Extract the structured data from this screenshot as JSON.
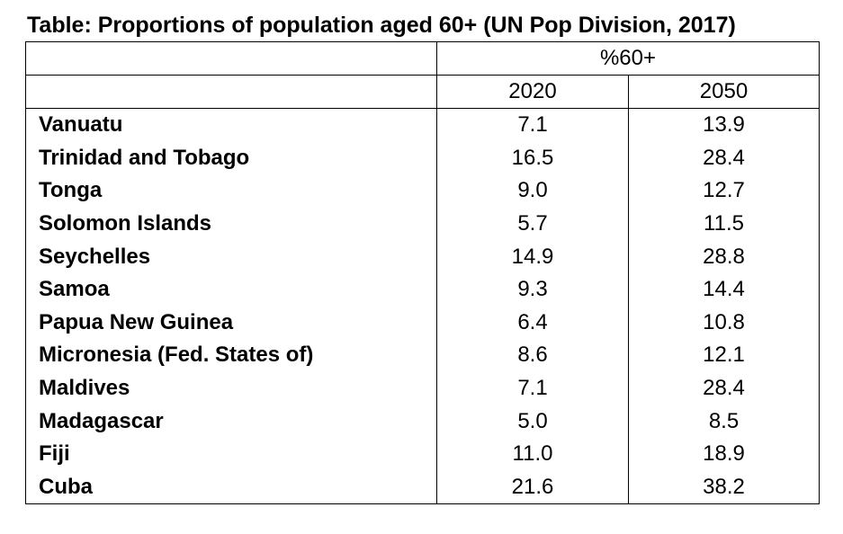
{
  "title": "Table: Proportions of population aged 60+ (UN Pop Division, 2017)",
  "header": {
    "group_label": "%60+",
    "year_2020": "2020",
    "year_2050": "2050"
  },
  "rows": [
    {
      "country": "Vanuatu",
      "v2020": "7.1",
      "v2050": "13.9"
    },
    {
      "country": "Trinidad and Tobago",
      "v2020": "16.5",
      "v2050": "28.4"
    },
    {
      "country": "Tonga",
      "v2020": "9.0",
      "v2050": "12.7"
    },
    {
      "country": "Solomon Islands",
      "v2020": "5.7",
      "v2050": "11.5"
    },
    {
      "country": "Seychelles",
      "v2020": "14.9",
      "v2050": "28.8"
    },
    {
      "country": "Samoa",
      "v2020": "9.3",
      "v2050": "14.4"
    },
    {
      "country": "Papua New Guinea",
      "v2020": "6.4",
      "v2050": "10.8"
    },
    {
      "country": "Micronesia (Fed. States of)",
      "v2020": "8.6",
      "v2050": "12.1"
    },
    {
      "country": "Maldives",
      "v2020": "7.1",
      "v2050": "28.4"
    },
    {
      "country": "Madagascar",
      "v2020": "5.0",
      "v2050": "8.5"
    },
    {
      "country": "Fiji",
      "v2020": "11.0",
      "v2050": "18.9"
    },
    {
      "country": "Cuba",
      "v2020": "21.6",
      "v2050": "38.2"
    }
  ]
}
